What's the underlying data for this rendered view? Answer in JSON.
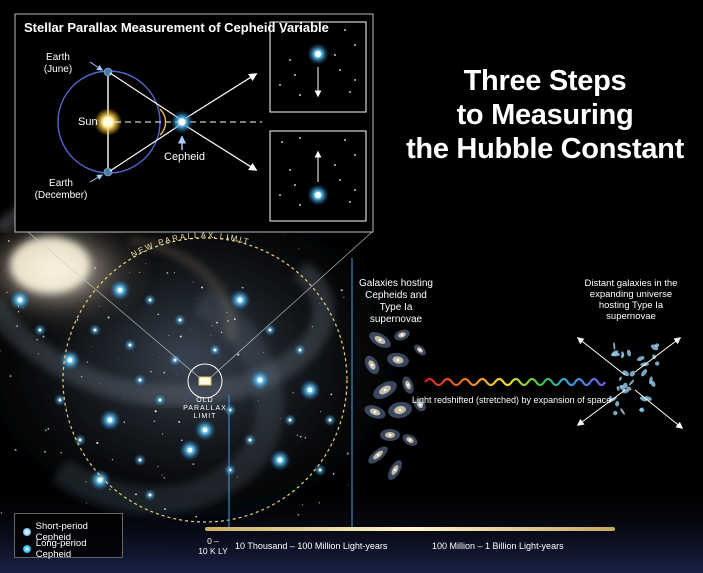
{
  "title_lines": [
    "Three Steps",
    "to Measuring",
    "the Hubble Constant"
  ],
  "inset": {
    "title": "Stellar Parallax Measurement of Cepheid Variable",
    "earth_june": [
      "Earth",
      "(June)"
    ],
    "earth_december": [
      "Earth",
      "(December)"
    ],
    "sun_label": "Sun",
    "cepheid_label": "Cepheid"
  },
  "arc_label": "NEW PARALLAX LIMIT",
  "old_limit": [
    "OLD",
    "PARALLAX",
    "LIMIT"
  ],
  "galaxies_label": [
    "Galaxies hosting",
    "Cepheids and",
    "Type Ia",
    "supernovae"
  ],
  "distant_label": [
    "Distant galaxies in the",
    "expanding universe",
    "hosting Type Ia",
    "supernovae"
  ],
  "redshift_label": "Light redshifted (stretched) by expansion of space",
  "scale": {
    "seg1": [
      "0 –",
      "10 K LY"
    ],
    "seg2": "10 Thousand – 100 Million Light-years",
    "seg3": "100 Million – 1 Billion Light-years"
  },
  "legend": {
    "short": "Short-period Cepheid",
    "long": "Long-period Cepheid"
  },
  "colors": {
    "background": "#000000",
    "cepheid_short": "#9fd8ff",
    "cepheid_long": "#3fc6ff",
    "sun": "#ffe680",
    "scale_bar": "#e8d8a0",
    "orbit": "#5566cc",
    "dashed_circle": "#e8d27a"
  }
}
